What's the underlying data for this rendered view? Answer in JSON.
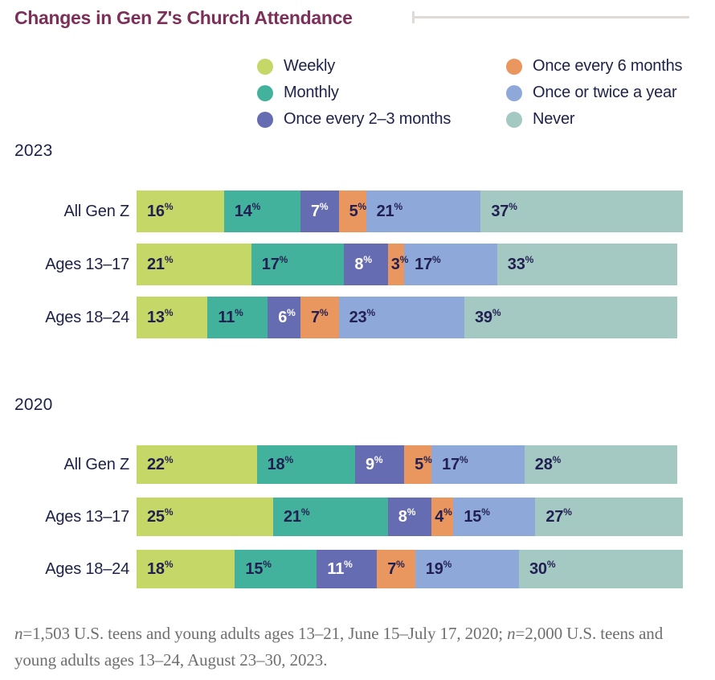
{
  "title": "Changes in Gen Z's Church Attendance",
  "colors": {
    "title": "#7c2f59",
    "rule": "#dfdad5",
    "text_navy": "#1e2148",
    "value_navy": "#221f52",
    "footnote_gray": "#6f6f6f"
  },
  "chart_data": {
    "type": "bar",
    "stacked": true,
    "orientation": "horizontal",
    "unit": "%",
    "total": 100,
    "legend_position": "top",
    "grid": false,
    "legend": [
      {
        "label": "Weekly",
        "color": "#c5d767",
        "text_color": "#221f52"
      },
      {
        "label": "Monthly",
        "color": "#43b29c",
        "text_color": "#221f52"
      },
      {
        "label": "Once every 2–3 months",
        "color": "#666cb1",
        "text_color": "#ffffff"
      },
      {
        "label": "Once every 6 months",
        "color": "#e9965f",
        "text_color": "#221f52"
      },
      {
        "label": "Once or twice a year",
        "color": "#8ea9d9",
        "text_color": "#221f52"
      },
      {
        "label": "Never",
        "color": "#a3c9c2",
        "text_color": "#221f52"
      }
    ],
    "groups": [
      {
        "year": "2023",
        "rows": [
          {
            "label": "All Gen Z",
            "values": [
              16,
              14,
              7,
              5,
              21,
              37
            ]
          },
          {
            "label": "Ages 13–17",
            "values": [
              21,
              17,
              8,
              3,
              17,
              33
            ]
          },
          {
            "label": "Ages 18–24",
            "values": [
              13,
              11,
              6,
              7,
              23,
              39
            ]
          }
        ]
      },
      {
        "year": "2020",
        "rows": [
          {
            "label": "All Gen Z",
            "values": [
              22,
              18,
              9,
              5,
              17,
              28
            ]
          },
          {
            "label": "Ages 13–17",
            "values": [
              25,
              21,
              8,
              4,
              15,
              27
            ]
          },
          {
            "label": "Ages 18–24",
            "values": [
              18,
              15,
              11,
              7,
              19,
              30
            ]
          }
        ]
      }
    ]
  },
  "footnote": {
    "runs": [
      {
        "text": "n",
        "italic": true
      },
      {
        "text": "=1,503 U.S. teens and young adults ages 13–21, June 15–July 17, 2020; ",
        "italic": false
      },
      {
        "text": "n",
        "italic": true
      },
      {
        "text": "=2,000 U.S. teens and young adults ages 13–24, August 23–30, 2023.",
        "italic": false
      }
    ]
  }
}
